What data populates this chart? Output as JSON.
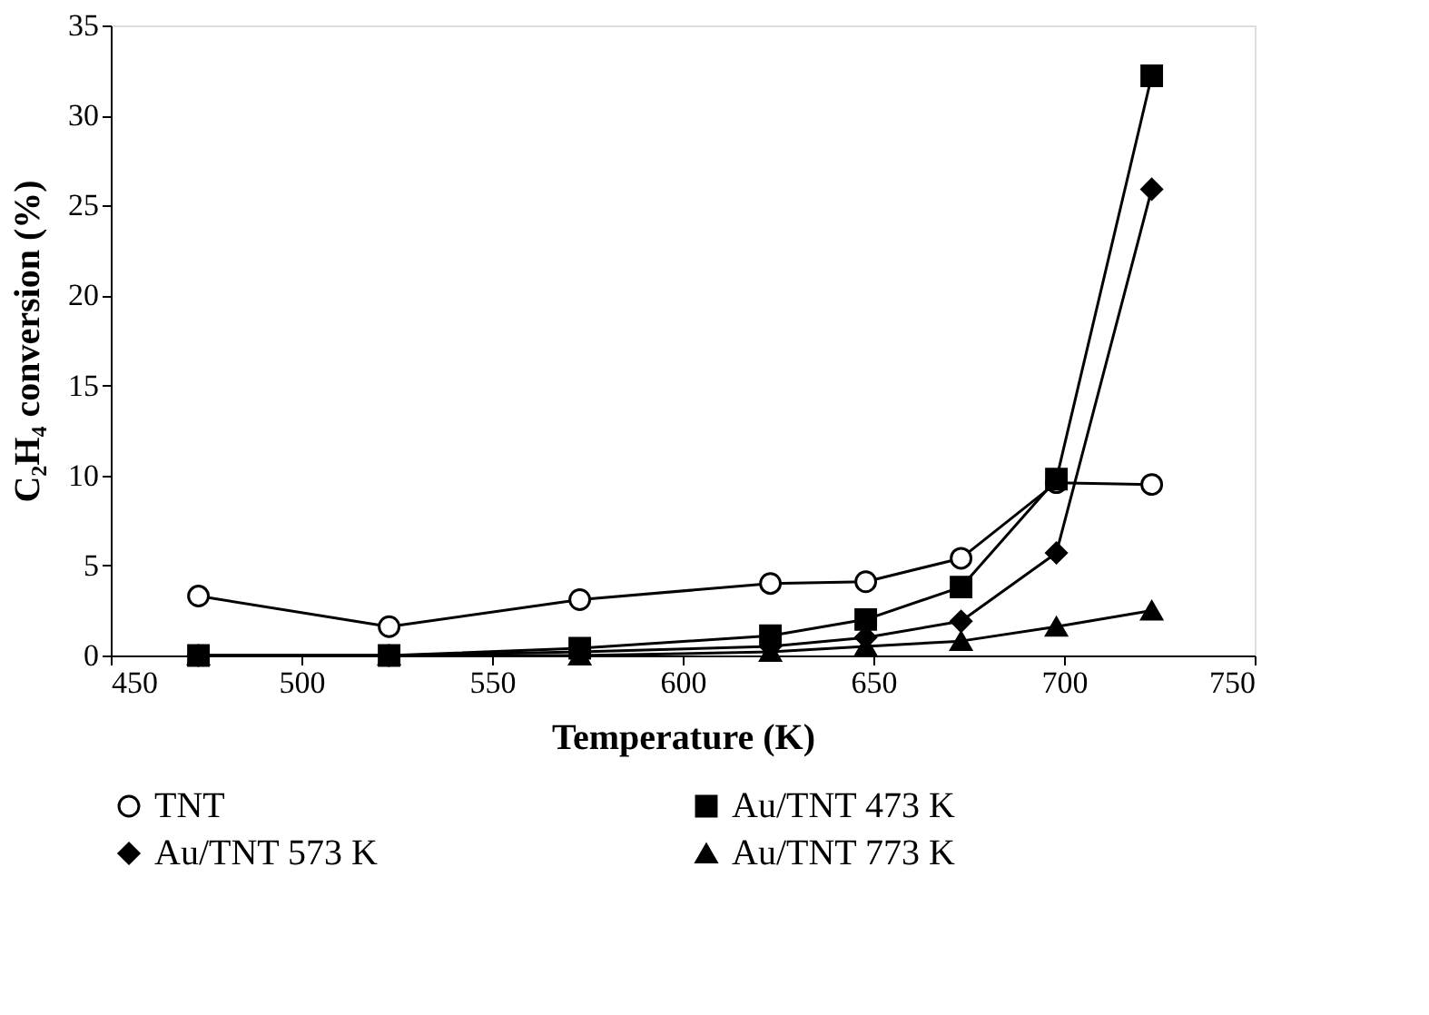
{
  "chart_data": {
    "type": "line",
    "xlabel": "Temperature (K)",
    "ylabel": "C₂H₄ conversion (%)",
    "x": [
      473,
      523,
      573,
      623,
      648,
      673,
      698,
      723
    ],
    "xlim": [
      450,
      750
    ],
    "xticks": [
      450,
      500,
      550,
      600,
      650,
      700,
      750
    ],
    "ylim": [
      0,
      35
    ],
    "yticks": [
      0,
      5,
      10,
      15,
      20,
      25,
      30,
      35
    ],
    "grid": false,
    "legend": "bottom",
    "series": [
      {
        "name": "TNT",
        "color": "#000000",
        "marker": "circle",
        "values": [
          3.3,
          1.6,
          3.1,
          4.0,
          4.1,
          5.4,
          9.6,
          9.5
        ]
      },
      {
        "name": "Au/TNT 473 K",
        "color": "#000000",
        "marker": "square",
        "values": [
          0.0,
          0.0,
          0.4,
          1.1,
          2.0,
          3.8,
          9.8,
          32.2
        ]
      },
      {
        "name": "Au/TNT 573 K",
        "color": "#000000",
        "marker": "diamond",
        "values": [
          0.0,
          0.0,
          0.2,
          0.5,
          1.0,
          1.9,
          5.7,
          25.9
        ]
      },
      {
        "name": "Au/TNT 773 K",
        "color": "#000000",
        "marker": "triangle",
        "values": [
          0.0,
          0.0,
          0.0,
          0.2,
          0.5,
          0.8,
          1.6,
          2.5
        ]
      }
    ]
  }
}
